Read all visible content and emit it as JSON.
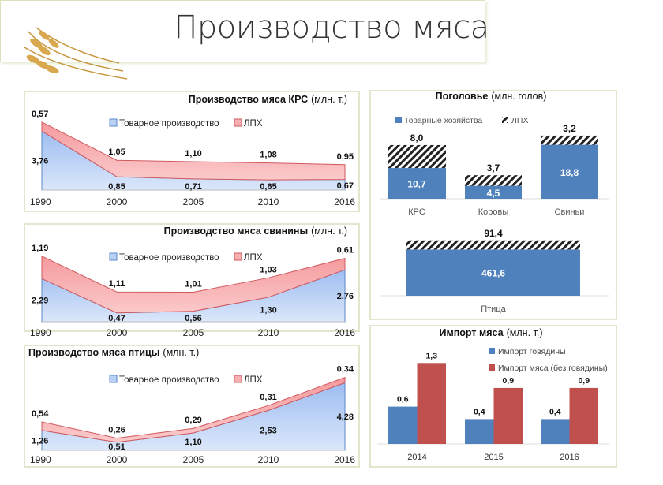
{
  "slide_title": "Производство мяса",
  "chart_data": [
    {
      "id": "beef",
      "type": "area",
      "stacked": true,
      "title": "Производство мяса КРС",
      "unit": "(млн. т.)",
      "categories": [
        "1990",
        "2000",
        "2005",
        "2010",
        "2016"
      ],
      "series": [
        {
          "name": "Товарное производство",
          "color": "#a9c5f2",
          "values": [
            3.76,
            0.85,
            0.71,
            0.65,
            0.67
          ],
          "labels": [
            "3,76",
            "0,85",
            "0,71",
            "0,65",
            "0,67"
          ]
        },
        {
          "name": "ЛПХ",
          "color": "#f6a3a6",
          "values": [
            0.57,
            1.05,
            1.1,
            1.08,
            0.95
          ],
          "labels": [
            "0,57",
            "1,05",
            "1,10",
            "1,08",
            "0,95"
          ]
        }
      ],
      "legend": "top"
    },
    {
      "id": "pork",
      "type": "area",
      "stacked": true,
      "title": "Производство мяса свинины",
      "unit": "(млн. т.)",
      "categories": [
        "1990",
        "2000",
        "2005",
        "2010",
        "2016"
      ],
      "series": [
        {
          "name": "Товарное производство",
          "color": "#a9c5f2",
          "values": [
            2.29,
            0.47,
            0.56,
            1.3,
            2.76
          ],
          "labels": [
            "2,29",
            "0,47",
            "0,56",
            "1,30",
            "2,76"
          ]
        },
        {
          "name": "ЛПХ",
          "color": "#f6a3a6",
          "values": [
            1.19,
            1.11,
            1.01,
            1.03,
            0.61
          ],
          "labels": [
            "1,19",
            "1,11",
            "1,01",
            "1,03",
            "0,61"
          ]
        }
      ],
      "legend": "top"
    },
    {
      "id": "poultry",
      "type": "area",
      "stacked": true,
      "title": "Производство мяса птицы",
      "unit": "(млн. т.)",
      "categories": [
        "1990",
        "2000",
        "2005",
        "2010",
        "2016"
      ],
      "series": [
        {
          "name": "Товарное производство",
          "color": "#a9c5f2",
          "values": [
            1.26,
            0.51,
            1.1,
            2.53,
            4.28
          ],
          "labels": [
            "1,26",
            "0,51",
            "1,10",
            "2,53",
            "4,28"
          ]
        },
        {
          "name": "ЛПХ",
          "color": "#f6a3a6",
          "values": [
            0.54,
            0.26,
            0.29,
            0.31,
            0.34
          ],
          "labels": [
            "0,54",
            "0,26",
            "0,29",
            "0,31",
            "0,34"
          ]
        }
      ],
      "legend": "top"
    },
    {
      "id": "livestock",
      "type": "bar",
      "stacked": true,
      "title": "Поголовье",
      "unit": "(млн. голов)",
      "categories": [
        "КРС",
        "Коровы",
        "Свиньи",
        "Птица"
      ],
      "series": [
        {
          "name": "Товарные хозяйства",
          "color": "#4f81bd",
          "values": [
            10.7,
            4.5,
            18.8,
            461.6
          ],
          "labels": [
            "10,7",
            "4,5",
            "18,8",
            "461,6"
          ]
        },
        {
          "name": "ЛПХ",
          "color": "hatch",
          "values": [
            8.0,
            3.7,
            3.2,
            91.4
          ],
          "labels": [
            "8,0",
            "3,7",
            "3,2",
            "91,4"
          ]
        }
      ],
      "legend": "top"
    },
    {
      "id": "import",
      "type": "bar",
      "stacked": false,
      "title": "Импорт мяса",
      "unit": "(млн. т.)",
      "categories": [
        "2014",
        "2015",
        "2016"
      ],
      "series": [
        {
          "name": "Импорт говядины",
          "color": "#4f81bd",
          "values": [
            0.6,
            0.4,
            0.4
          ],
          "labels": [
            "0,6",
            "0,4",
            "0,4"
          ]
        },
        {
          "name": "Импорт мяса (без говядины)",
          "color": "#c0504d",
          "values": [
            1.3,
            0.9,
            0.9
          ],
          "labels": [
            "1,3",
            "0,9",
            "0,9"
          ]
        }
      ],
      "legend": "right"
    }
  ]
}
